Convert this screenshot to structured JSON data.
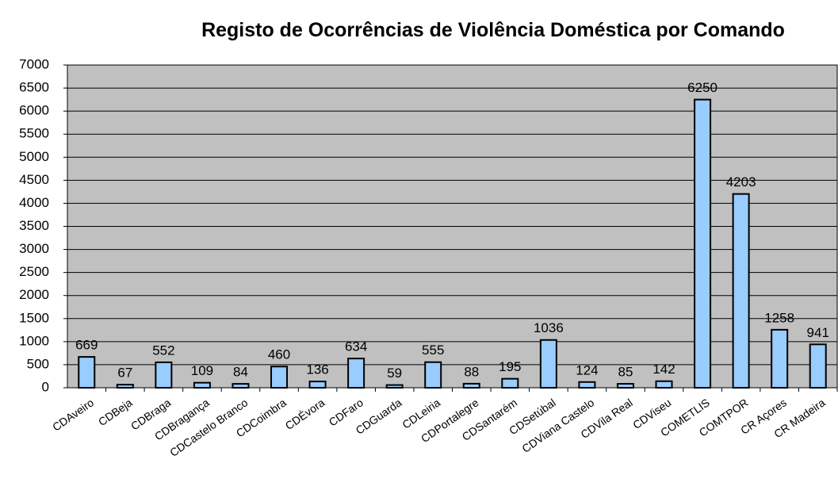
{
  "chart_data": {
    "type": "bar",
    "title": "Registo de Ocorrências de Violência Doméstica por Comando",
    "categories": [
      "CDAveiro",
      "CDBeja",
      "CDBraga",
      "CDBragança",
      "CDCastelo Branco",
      "CDCoimbra",
      "CDÉvora",
      "CDFaro",
      "CDGuarda",
      "CDLeiria",
      "CDPortalegre",
      "CDSantarém",
      "CDSetúbal",
      "CDViana Castelo",
      "CDVila Real",
      "CDViseu",
      "COMETLIS",
      "COMTPOR",
      "CR Açores",
      "CR Madeira"
    ],
    "values": [
      669,
      67,
      552,
      109,
      84,
      460,
      136,
      634,
      59,
      555,
      88,
      195,
      1036,
      124,
      85,
      142,
      6250,
      4203,
      1258,
      941
    ],
    "color": "#99ccff",
    "ylim": [
      0,
      7000
    ],
    "yticks": [
      0,
      500,
      1000,
      1500,
      2000,
      2500,
      3000,
      3500,
      4000,
      4500,
      5000,
      5500,
      6000,
      6500,
      7000
    ],
    "grid": true
  }
}
